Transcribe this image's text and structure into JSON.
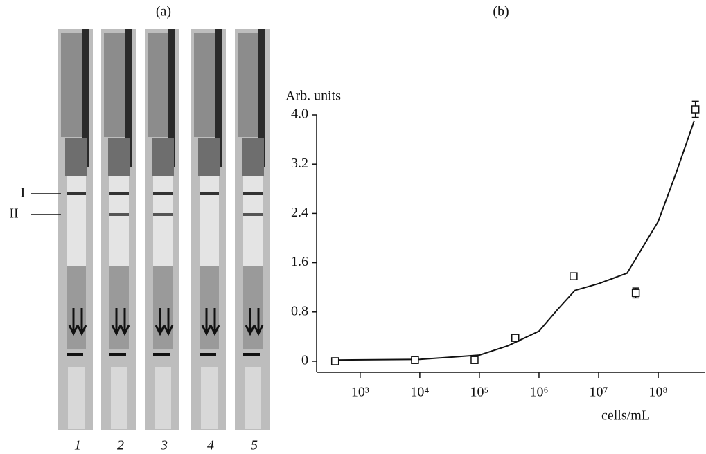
{
  "panel_a": {
    "label": "(a)",
    "line_labels": [
      "I",
      "II"
    ],
    "strip_labels": [
      "1",
      "2",
      "3",
      "4",
      "5"
    ]
  },
  "chart_data": {
    "type": "scatter",
    "title": "(b)",
    "y_label": "Arb. units",
    "x_label": "cells/mL",
    "x_scale": "log",
    "xlim": [
      186,
      600000000
    ],
    "ylim": [
      -0.18,
      4.0
    ],
    "xticks": [
      {
        "value": 1000,
        "label": "10³"
      },
      {
        "value": 10000,
        "label": "10⁴"
      },
      {
        "value": 100000,
        "label": "10⁵"
      },
      {
        "value": 1000000,
        "label": "10⁶"
      },
      {
        "value": 10000000,
        "label": "10⁷"
      },
      {
        "value": 100000000,
        "label": "10⁸"
      }
    ],
    "yticks": [
      0,
      0.8,
      1.6,
      2.4,
      3.2,
      {
        "value": 4,
        "label": "4.0"
      }
    ],
    "series": [
      {
        "color": "#111111",
        "x": [
          380,
          8300,
          83000,
          400000,
          3800000,
          42000000,
          420000000
        ],
        "values": [
          0,
          0.02,
          0.02,
          0.38,
          1.38,
          1.11,
          4.09
        ],
        "errors": [
          null,
          null,
          null,
          null,
          null,
          0.08,
          0.13
        ]
      }
    ],
    "curve": {
      "color": "#111111",
      "x": [
        380,
        10000,
        100000,
        300000,
        1000000,
        2000000,
        4000000,
        10000000,
        30000000,
        100000000,
        200000000,
        400000000
      ],
      "values": [
        0.02,
        0.03,
        0.1,
        0.25,
        0.49,
        0.83,
        1.15,
        1.26,
        1.43,
        2.27,
        3.06,
        3.9
      ]
    }
  }
}
